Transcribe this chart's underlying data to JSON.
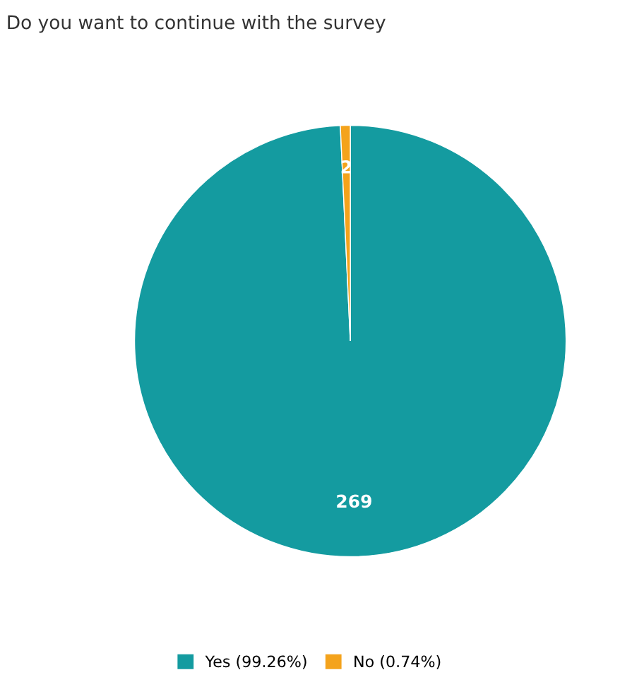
{
  "chart_data": {
    "type": "pie",
    "title": "Do you want to continue with the survey",
    "categories": [
      "Yes (99.26%)",
      "No (0.74%)"
    ],
    "values": [
      269,
      2
    ],
    "colors": [
      "#149ba0",
      "#f4a31c"
    ],
    "data_labels": true,
    "legend": "bottom"
  }
}
